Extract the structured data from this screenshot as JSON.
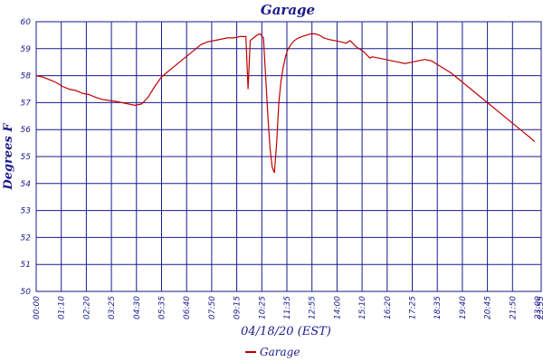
{
  "chart_data": {
    "type": "line",
    "title": "Garage",
    "xlabel": "04/18/20 (EST)",
    "ylabel": "Degrees F",
    "ylim": [
      50,
      60
    ],
    "y_ticks": [
      "50",
      "51",
      "52",
      "53",
      "54",
      "55",
      "56",
      "57",
      "58",
      "59",
      "60"
    ],
    "x_ticks": [
      "00:00",
      "01:10",
      "02:20",
      "03:25",
      "04:30",
      "05:35",
      "06:40",
      "07:50",
      "09:15",
      "10:25",
      "11:35",
      "12:55",
      "14:00",
      "15:10",
      "16:20",
      "17:25",
      "18:35",
      "19:40",
      "20:45",
      "21:50",
      "23:00",
      "23:55"
    ],
    "grid": true,
    "legend_position": "bottom-center",
    "colors": {
      "series": "#c00000",
      "text": "#1a1a8c"
    },
    "series": [
      {
        "name": "Garage",
        "x": [
          0,
          0.3,
          0.6,
          0.9,
          1.2,
          1.5,
          1.8,
          2.1,
          2.4,
          2.7,
          3.0,
          3.3,
          3.6,
          3.9,
          4.2,
          4.5,
          4.8,
          5.1,
          5.4,
          5.7,
          6.0,
          6.3,
          6.6,
          6.9,
          7.2,
          7.5,
          7.8,
          8.1,
          8.4,
          8.7,
          9.0,
          9.3,
          9.55,
          9.65,
          9.75,
          9.9,
          10.05,
          10.2,
          10.35,
          10.45,
          10.55,
          10.65,
          10.75,
          10.85,
          10.95,
          11.05,
          11.15,
          11.25,
          11.35,
          11.45,
          11.6,
          11.75,
          11.9,
          12.1,
          12.3,
          12.5,
          12.7,
          12.9,
          13.1,
          13.3,
          13.6,
          13.9,
          14.1,
          14.3,
          14.6,
          14.9,
          15.2,
          15.3,
          15.6,
          15.9,
          16.2,
          16.5,
          16.8,
          17.1,
          17.4,
          17.7,
          18.0,
          18.3,
          18.6,
          18.9,
          19.2,
          19.5,
          19.8,
          20.1,
          20.4,
          20.7,
          21.0,
          21.3,
          21.6,
          21.9,
          22.2,
          22.5,
          22.7
        ],
        "values": [
          58.0,
          57.95,
          57.85,
          57.75,
          57.6,
          57.5,
          57.45,
          57.35,
          57.3,
          57.2,
          57.12,
          57.08,
          57.05,
          57.0,
          56.95,
          56.9,
          56.95,
          57.2,
          57.6,
          57.95,
          58.15,
          58.35,
          58.55,
          58.75,
          58.95,
          59.15,
          59.25,
          59.3,
          59.35,
          59.4,
          59.4,
          59.45,
          59.45,
          57.5,
          59.3,
          59.4,
          59.5,
          59.55,
          59.4,
          58.0,
          56.5,
          55.3,
          54.6,
          54.4,
          55.5,
          57.0,
          57.8,
          58.3,
          58.7,
          58.95,
          59.15,
          59.3,
          59.38,
          59.45,
          59.5,
          59.55,
          59.55,
          59.5,
          59.4,
          59.35,
          59.3,
          59.25,
          59.2,
          59.3,
          59.05,
          58.9,
          58.65,
          58.7,
          58.65,
          58.6,
          58.55,
          58.5,
          58.45,
          58.5,
          58.55,
          58.6,
          58.55,
          58.4,
          58.25,
          58.1,
          57.9,
          57.7,
          57.5,
          57.3,
          57.1,
          56.9,
          56.7,
          56.5,
          56.3,
          56.1,
          55.9,
          55.7,
          55.55
        ]
      }
    ]
  }
}
